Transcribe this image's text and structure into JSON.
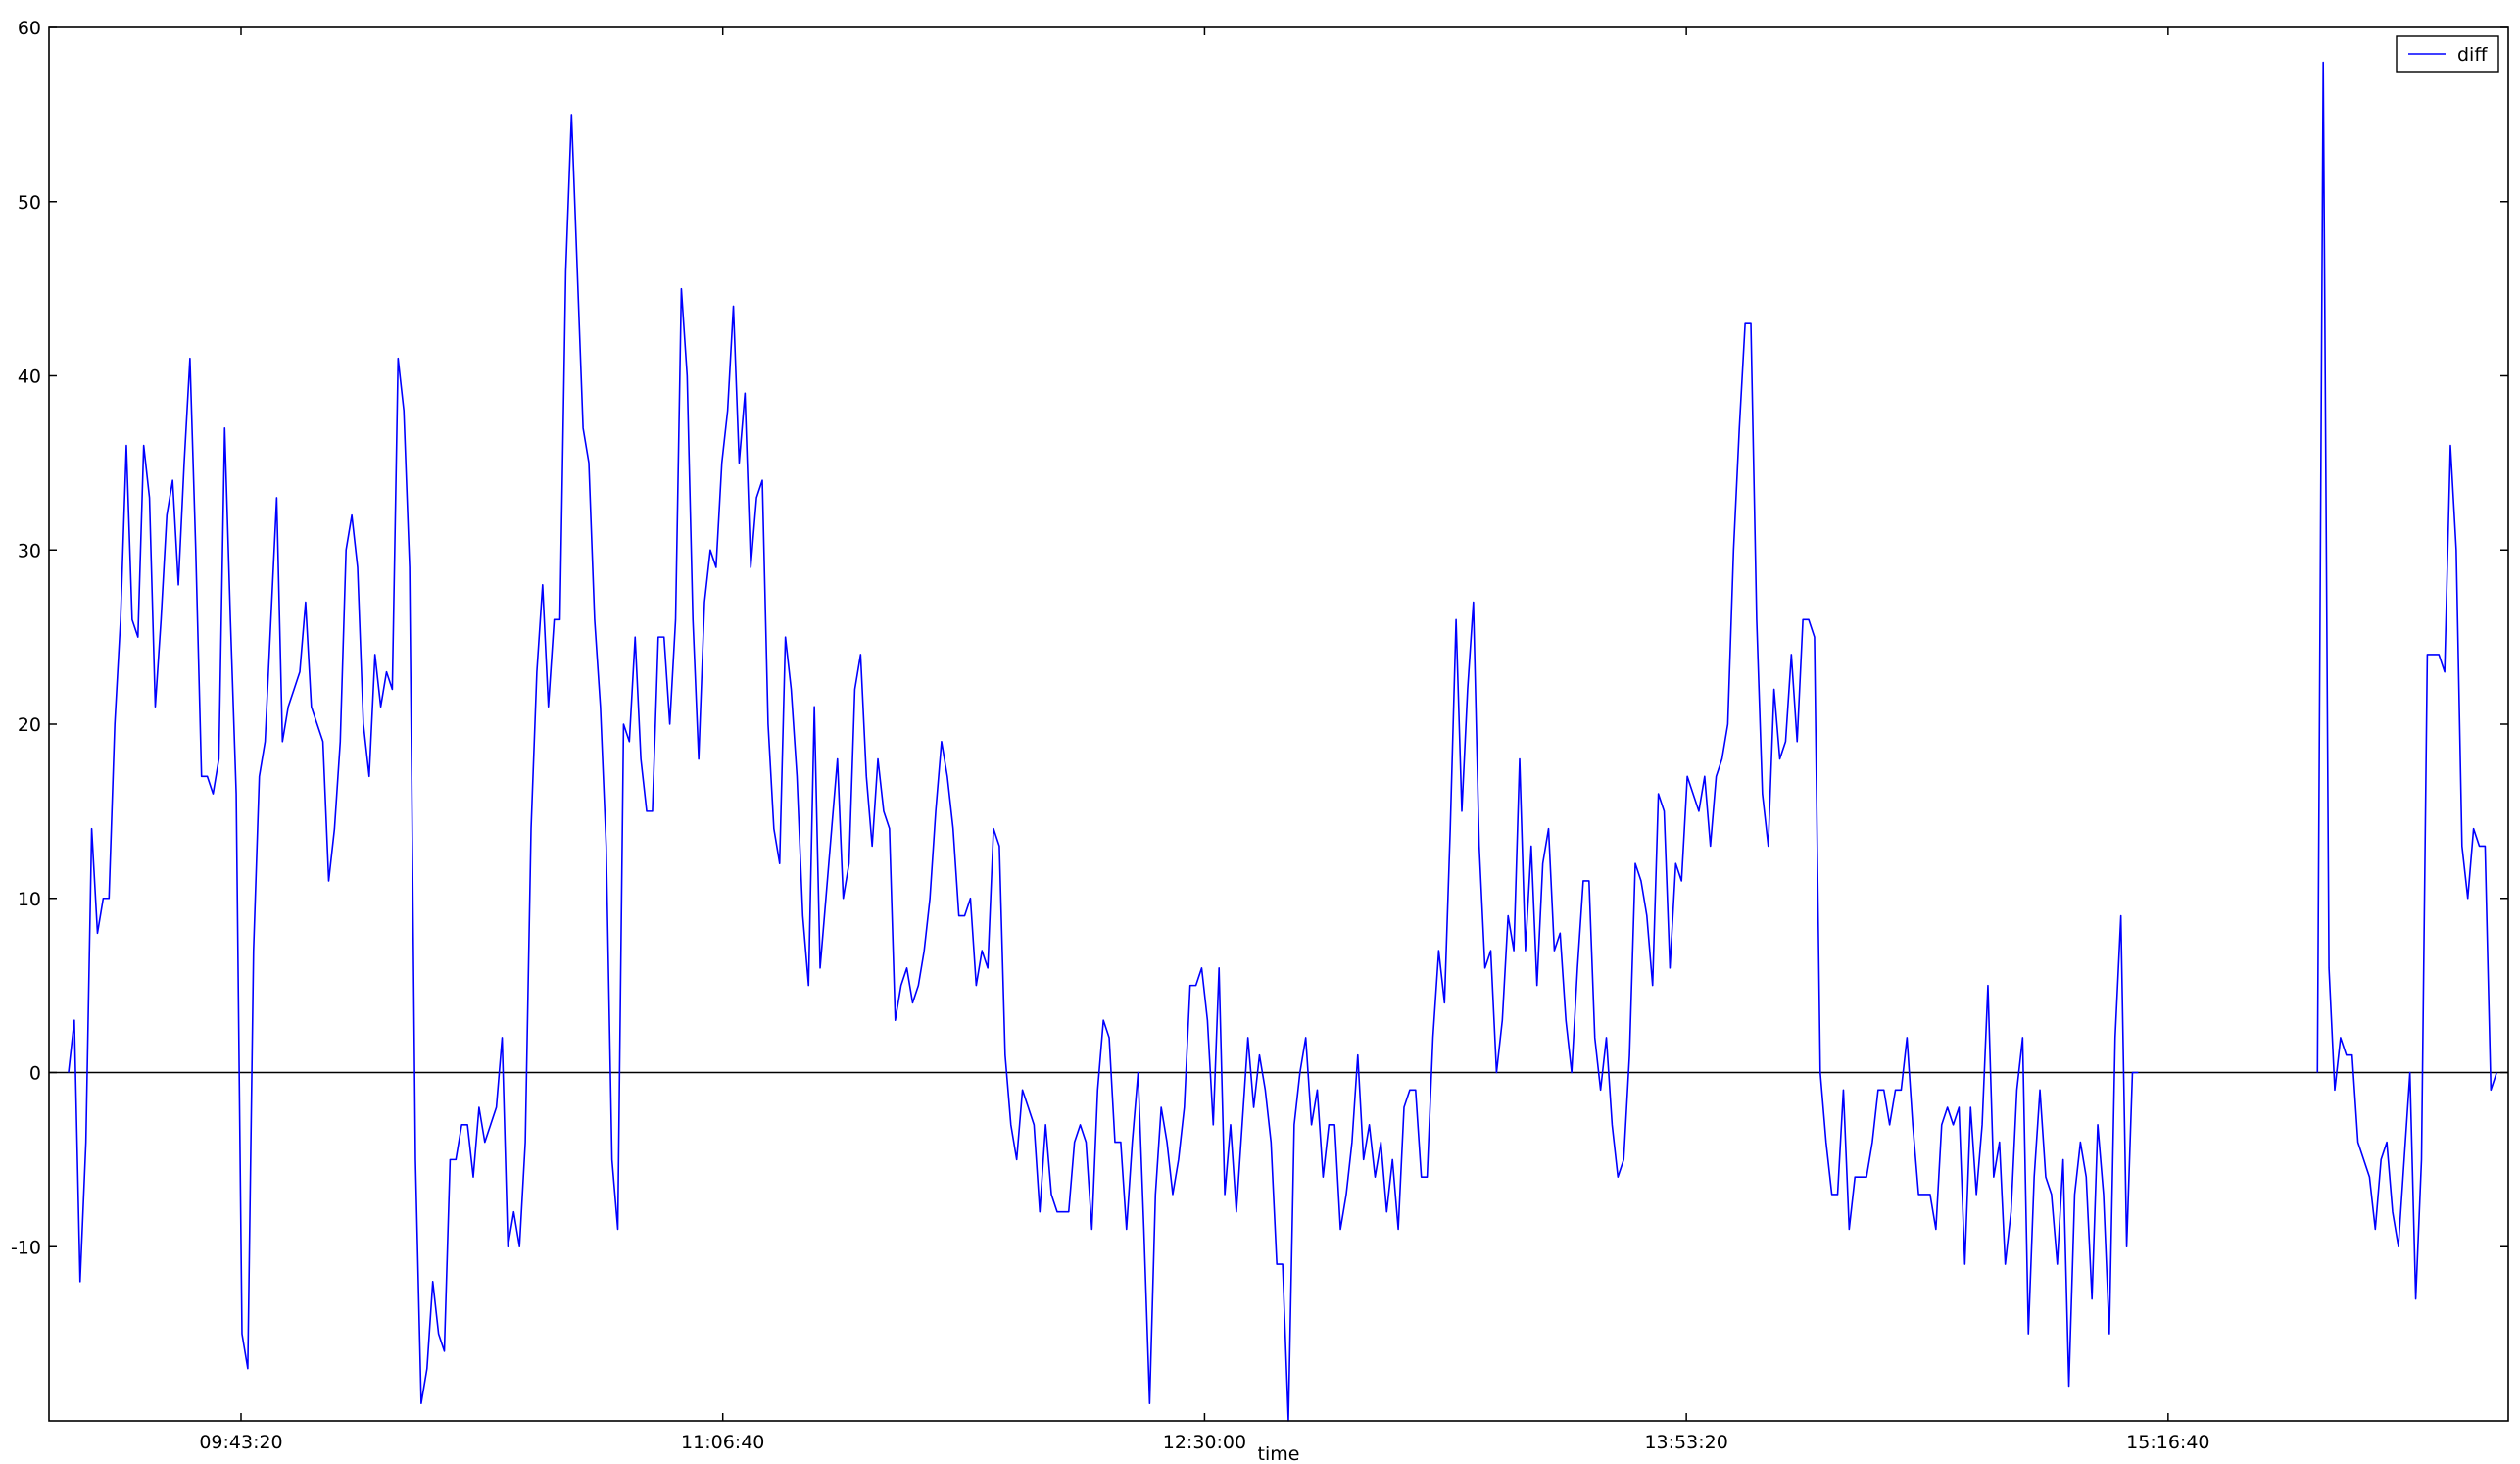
{
  "chart_data": {
    "type": "line",
    "xlabel": "time",
    "legend": "upper right",
    "grid": false,
    "axhline": 0,
    "xlim": [
      "09:10:07",
      "16:15:30"
    ],
    "xticks": [
      "09:43:20",
      "11:06:40",
      "12:30:00",
      "13:53:20",
      "15:16:40"
    ],
    "ylim": [
      -20,
      60
    ],
    "yticks": [
      -10,
      0,
      10,
      20,
      30,
      40,
      50,
      60
    ],
    "x": [
      "09:13:30",
      "09:14:30",
      "09:15:30",
      "09:16:30",
      "09:17:30",
      "09:18:30",
      "09:19:30",
      "09:20:30",
      "09:21:30",
      "09:22:30",
      "09:23:30",
      "09:24:30",
      "09:25:30",
      "09:26:30",
      "09:27:30",
      "09:28:30",
      "09:29:30",
      "09:30:30",
      "09:31:30",
      "09:32:30",
      "09:33:30",
      "09:34:30",
      "09:35:30",
      "09:36:30",
      "09:37:30",
      "09:38:30",
      "09:39:30",
      "09:40:30",
      "09:41:30",
      "09:42:30",
      "09:43:30",
      "09:44:30",
      "09:45:30",
      "09:46:30",
      "09:47:30",
      "09:48:30",
      "09:49:30",
      "09:50:30",
      "09:51:30",
      "09:52:30",
      "09:53:30",
      "09:54:30",
      "09:55:30",
      "09:56:30",
      "09:57:30",
      "09:58:30",
      "09:59:30",
      "10:00:30",
      "10:01:30",
      "10:02:30",
      "10:03:30",
      "10:04:30",
      "10:05:30",
      "10:06:30",
      "10:07:30",
      "10:08:30",
      "10:09:30",
      "10:10:30",
      "10:11:30",
      "10:12:30",
      "10:13:30",
      "10:14:30",
      "10:15:30",
      "10:16:30",
      "10:17:30",
      "10:18:30",
      "10:19:30",
      "10:20:30",
      "10:21:30",
      "10:22:30",
      "10:23:30",
      "10:24:30",
      "10:25:30",
      "10:26:30",
      "10:27:30",
      "10:28:30",
      "10:29:30",
      "10:30:30",
      "10:31:30",
      "10:32:30",
      "10:33:30",
      "10:34:30",
      "10:35:30",
      "10:36:30",
      "10:37:30",
      "10:38:30",
      "10:39:30",
      "10:40:30",
      "10:41:30",
      "10:42:30",
      "10:43:30",
      "10:44:30",
      "10:45:30",
      "10:46:30",
      "10:47:30",
      "10:48:30",
      "10:49:30",
      "10:50:30",
      "10:51:30",
      "10:52:30",
      "10:53:30",
      "10:54:30",
      "10:55:30",
      "10:56:30",
      "10:57:30",
      "10:58:30",
      "10:59:30",
      "11:00:30",
      "11:01:30",
      "11:02:30",
      "11:03:30",
      "11:04:30",
      "11:05:30",
      "11:06:30",
      "11:07:30",
      "11:08:30",
      "11:09:30",
      "11:10:30",
      "11:11:30",
      "11:12:30",
      "11:13:30",
      "11:14:30",
      "11:15:30",
      "11:16:30",
      "11:17:30",
      "11:18:30",
      "11:19:30",
      "11:20:30",
      "11:21:30",
      "11:22:30",
      "11:23:30",
      "11:24:30",
      "11:25:30",
      "11:26:30",
      "11:27:30",
      "11:28:30",
      "11:29:30",
      "11:30:30",
      "11:31:30",
      "11:32:30",
      "11:33:30",
      "11:34:30",
      "11:35:30",
      "11:36:30",
      "11:37:30",
      "11:38:30",
      "11:39:30",
      "11:40:30",
      "11:41:30",
      "11:42:30",
      "11:43:30",
      "11:44:30",
      "11:45:30",
      "11:46:30",
      "11:47:30",
      "11:48:30",
      "11:49:30",
      "11:50:30",
      "11:51:30",
      "11:52:30",
      "11:53:30",
      "11:54:30",
      "11:55:30",
      "11:56:30",
      "11:57:30",
      "11:58:30",
      "11:59:30",
      "12:00:30",
      "12:01:30",
      "12:02:30",
      "12:03:30",
      "12:04:30",
      "12:05:30",
      "12:06:30",
      "12:07:30",
      "12:08:30",
      "12:09:30",
      "12:10:30",
      "12:11:30",
      "12:12:30",
      "12:13:30",
      "12:14:30",
      "12:15:30",
      "12:16:30",
      "12:17:30",
      "12:18:30",
      "12:19:30",
      "12:20:30",
      "12:21:30",
      "12:22:30",
      "12:23:30",
      "12:24:30",
      "12:25:30",
      "12:26:30",
      "12:27:30",
      "12:28:30",
      "12:29:30",
      "12:30:30",
      "12:31:30",
      "12:32:30",
      "12:33:30",
      "12:34:30",
      "12:35:30",
      "12:36:30",
      "12:37:30",
      "12:38:30",
      "12:39:30",
      "12:40:30",
      "12:41:30",
      "12:42:30",
      "12:43:30",
      "12:44:30",
      "12:45:30",
      "12:46:30",
      "12:47:30",
      "12:48:30",
      "12:49:30",
      "12:50:30",
      "12:51:30",
      "12:52:30",
      "12:53:30",
      "12:54:30",
      "12:55:30",
      "12:56:30",
      "12:57:30",
      "12:58:30",
      "12:59:30",
      "13:00:30",
      "13:01:30",
      "13:02:30",
      "13:03:30",
      "13:04:30",
      "13:05:30",
      "13:06:30",
      "13:07:30",
      "13:08:30",
      "13:09:30",
      "13:10:30",
      "13:11:30",
      "13:12:30",
      "13:13:30",
      "13:14:30",
      "13:15:30",
      "13:16:30",
      "13:17:30",
      "13:18:30",
      "13:19:30",
      "13:20:30",
      "13:21:30",
      "13:22:30",
      "13:23:30",
      "13:24:30",
      "13:25:30",
      "13:26:30",
      "13:27:30",
      "13:28:30",
      "13:29:30",
      "13:30:30",
      "13:31:30",
      "13:32:30",
      "13:33:30",
      "13:34:30",
      "13:35:30",
      "13:36:30",
      "13:37:30",
      "13:38:30",
      "13:39:30",
      "13:40:30",
      "13:41:30",
      "13:42:30",
      "13:43:30",
      "13:44:30",
      "13:45:30",
      "13:46:30",
      "13:47:30",
      "13:48:30",
      "13:49:30",
      "13:50:30",
      "13:51:30",
      "13:52:30",
      "13:53:30",
      "13:54:30",
      "13:55:30",
      "13:56:30",
      "13:57:30",
      "13:58:30",
      "13:59:30",
      "14:00:30",
      "14:01:30",
      "14:02:30",
      "14:03:30",
      "14:04:30",
      "14:05:30",
      "14:06:30",
      "14:07:30",
      "14:08:30",
      "14:09:30",
      "14:10:30",
      "14:11:30",
      "14:12:30",
      "14:13:30",
      "14:14:30",
      "14:15:30",
      "14:16:30",
      "14:17:30",
      "14:18:30",
      "14:19:30",
      "14:20:30",
      "14:21:30",
      "14:22:30",
      "14:23:30",
      "14:24:30",
      "14:25:30",
      "14:26:30",
      "14:27:30",
      "14:28:30",
      "14:29:30",
      "14:30:30",
      "14:31:30",
      "14:32:30",
      "14:33:30",
      "14:34:30",
      "14:35:30",
      "14:36:30",
      "14:37:30",
      "14:38:30",
      "14:39:30",
      "14:40:30",
      "14:41:30",
      "14:42:30",
      "14:43:30",
      "14:44:30",
      "14:45:30",
      "14:46:30",
      "14:47:30",
      "14:48:30",
      "14:49:30",
      "14:50:30",
      "14:51:30",
      "14:52:30",
      "14:53:30",
      "14:54:30",
      "14:55:30",
      "14:56:30",
      "14:57:30",
      "14:58:30",
      "14:59:30",
      "15:00:30",
      "15:01:30",
      "15:02:30",
      "15:03:30",
      "15:04:30",
      "15:05:30",
      "15:06:30",
      "15:07:30",
      "15:08:30",
      "15:09:30",
      "15:10:30",
      "15:11:30",
      "15:12:30",
      "15:42:30",
      "15:43:30",
      "15:44:30",
      "15:45:30",
      "15:46:30",
      "15:47:30",
      "15:48:30",
      "15:49:30",
      "15:50:30",
      "15:51:30",
      "15:52:30",
      "15:53:30",
      "15:54:30",
      "15:55:30",
      "15:56:30",
      "15:57:30",
      "15:58:30",
      "15:59:30",
      "16:00:30",
      "16:01:30",
      "16:02:30",
      "16:03:30",
      "16:04:30",
      "16:05:30",
      "16:06:30",
      "16:07:30",
      "16:08:30",
      "16:09:30",
      "16:10:30",
      "16:11:30",
      "16:12:30",
      "16:13:30"
    ],
    "series": [
      {
        "name": "diff",
        "color": "#0000ff",
        "values": [
          0,
          3,
          -12,
          -4,
          14,
          8,
          10,
          10,
          20,
          26,
          36,
          26,
          25,
          36,
          33,
          21,
          26,
          32,
          34,
          28,
          35,
          41,
          30,
          17,
          17,
          16,
          18,
          37,
          26,
          16,
          -15,
          -17,
          7,
          17,
          19,
          26,
          33,
          19,
          21,
          22,
          23,
          27,
          21,
          20,
          19,
          11,
          14,
          19,
          30,
          32,
          29,
          20,
          17,
          24,
          21,
          23,
          22,
          41,
          38,
          29,
          -5,
          -19,
          -17,
          -12,
          -15,
          -16,
          -5,
          -5,
          -3,
          -3,
          -6,
          -2,
          -4,
          -3,
          -2,
          2,
          -10,
          -8,
          -10,
          -4,
          14,
          23,
          28,
          21,
          26,
          26,
          46,
          55,
          46,
          37,
          35,
          26,
          21,
          13,
          -5,
          -9,
          20,
          19,
          25,
          18,
          15,
          15,
          25,
          25,
          20,
          26,
          45,
          40,
          26,
          18,
          27,
          30,
          29,
          35,
          38,
          44,
          35,
          39,
          29,
          33,
          34,
          20,
          14,
          12,
          25,
          22,
          17,
          9,
          5,
          21,
          6,
          10,
          14,
          18,
          10,
          12,
          22,
          24,
          17,
          13,
          18,
          15,
          14,
          3,
          5,
          6,
          4,
          5,
          7,
          10,
          15,
          19,
          17,
          14,
          9,
          9,
          10,
          5,
          7,
          6,
          14,
          13,
          1,
          -3,
          -5,
          -1,
          -2,
          -3,
          -8,
          -3,
          -7,
          -8,
          -8,
          -8,
          -4,
          -3,
          -4,
          -9,
          -1,
          3,
          2,
          -4,
          -4,
          -9,
          -4,
          0,
          -9,
          -19,
          -7,
          -2,
          -4,
          -7,
          -5,
          -2,
          5,
          5,
          6,
          3,
          -3,
          6,
          -7,
          -3,
          -8,
          -3,
          2,
          -2,
          1,
          -1,
          -4,
          -11,
          -11,
          -20,
          -3,
          0,
          2,
          -3,
          -1,
          -6,
          -3,
          -3,
          -9,
          -7,
          -4,
          1,
          -5,
          -3,
          -6,
          -4,
          -8,
          -5,
          -9,
          -2,
          -1,
          -1,
          -6,
          -6,
          2,
          7,
          4,
          14,
          26,
          15,
          22,
          27,
          13,
          6,
          7,
          0,
          3,
          9,
          7,
          18,
          7,
          13,
          5,
          12,
          14,
          7,
          8,
          3,
          0,
          6,
          11,
          11,
          2,
          -1,
          2,
          -3,
          -6,
          -5,
          1,
          12,
          11,
          9,
          5,
          16,
          15,
          6,
          12,
          11,
          17,
          16,
          15,
          17,
          13,
          17,
          18,
          20,
          30,
          37,
          43,
          43,
          26,
          16,
          13,
          22,
          18,
          19,
          24,
          19,
          26,
          26,
          25,
          0,
          -4,
          -7,
          -7,
          -1,
          -9,
          -6,
          -6,
          -6,
          -4,
          -1,
          -1,
          -3,
          -1,
          -1,
          2,
          -3,
          -7,
          -7,
          -7,
          -9,
          -3,
          -2,
          -3,
          -2,
          -11,
          -2,
          -7,
          -3,
          5,
          -6,
          -4,
          -11,
          -8,
          -1,
          2,
          -15,
          -6,
          -1,
          -6,
          -7,
          -11,
          -5,
          -18,
          -7,
          -4,
          -6,
          -13,
          -3,
          -7,
          -15,
          2,
          9,
          -10,
          0,
          0,
          null,
          0,
          58,
          6,
          -1,
          2,
          1,
          1,
          -4,
          -5,
          -6,
          -9,
          -5,
          -4,
          -8,
          -10,
          -5,
          0,
          -13,
          -5,
          24,
          24,
          24,
          23,
          36,
          30,
          13,
          10,
          14,
          13,
          13,
          -1,
          0
        ]
      }
    ]
  }
}
